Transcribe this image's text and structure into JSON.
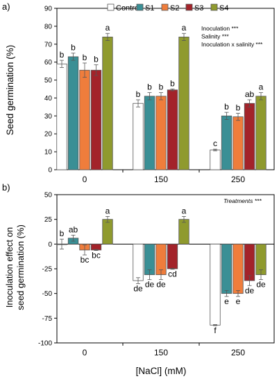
{
  "chart_data": [
    {
      "panel_label": "a)",
      "type": "bar",
      "ylabel": "Seed germination (%)",
      "ylim": [
        0,
        90
      ],
      "yticks": [
        "0",
        "10",
        "20",
        "30",
        "40",
        "50",
        "60",
        "70",
        "80",
        "90"
      ],
      "categories": [
        "0",
        "150",
        "250"
      ],
      "series": [
        {
          "name": "Control",
          "color": "#ffffff",
          "values": [
            59,
            37,
            11
          ],
          "errors": [
            2,
            2,
            0.5
          ],
          "letters": [
            "b",
            "b",
            "c"
          ]
        },
        {
          "name": "S1",
          "color": "#3a8f95",
          "values": [
            63,
            41,
            30
          ],
          "errors": [
            2,
            2,
            2
          ],
          "letters": [
            "b",
            "b",
            "b"
          ]
        },
        {
          "name": "S2",
          "color": "#ef7d3c",
          "values": [
            55.5,
            41,
            29.5
          ],
          "errors": [
            4,
            2,
            2
          ],
          "letters": [
            "b",
            "b",
            "b"
          ]
        },
        {
          "name": "S3",
          "color": "#a3232a",
          "values": [
            55.5,
            44.5,
            37
          ],
          "errors": [
            3,
            0.5,
            2
          ],
          "letters": [
            "b",
            "b",
            "ab"
          ]
        },
        {
          "name": "S4",
          "color": "#8f9a2e",
          "values": [
            74,
            74,
            41
          ],
          "errors": [
            2,
            2,
            2
          ],
          "letters": [
            "a",
            "a",
            "a"
          ]
        }
      ],
      "annotations": [
        "Inoculation ***",
        "Salinity ***",
        "Inoculation x salinity ***"
      ],
      "legend_position": "top-right"
    },
    {
      "panel_label": "b)",
      "type": "bar",
      "ylabel": "Inoculation effect on seed germination (%)",
      "ylabel_lines": [
        "Inoculation effect on",
        "seed germination (%)"
      ],
      "xlabel": "[NaCl] (mM)",
      "ylim": [
        -100,
        50
      ],
      "yticks": [
        "-100",
        "-75",
        "-50",
        "-25",
        "0",
        "25",
        "50"
      ],
      "categories": [
        "0",
        "150",
        "250"
      ],
      "series": [
        {
          "name": "Control",
          "color": "#ffffff",
          "values": [
            0,
            -37,
            -82
          ],
          "errors": [
            5,
            3,
            0.5
          ],
          "letters": [
            "b",
            "de",
            "f"
          ]
        },
        {
          "name": "S1",
          "color": "#3a8f95",
          "values": [
            6,
            -31,
            -50
          ],
          "errors": [
            3,
            5,
            3
          ],
          "letters": [
            "ab",
            "de",
            "e"
          ]
        },
        {
          "name": "S2",
          "color": "#ef7d3c",
          "values": [
            -6,
            -31,
            -50
          ],
          "errors": [
            5,
            5,
            3
          ],
          "letters": [
            "bc",
            "de",
            "e"
          ]
        },
        {
          "name": "S3",
          "color": "#a3232a",
          "values": [
            -6,
            -25,
            -37
          ],
          "errors": [
            0.5,
            0.5,
            5
          ],
          "letters": [
            "bc",
            "cd",
            "de"
          ]
        },
        {
          "name": "S4",
          "color": "#8f9a2e",
          "values": [
            25,
            25,
            -31
          ],
          "errors": [
            3,
            3,
            5
          ],
          "letters": [
            "a",
            "a",
            "de"
          ]
        }
      ],
      "annotations": [
        "Treatments ***"
      ]
    }
  ]
}
